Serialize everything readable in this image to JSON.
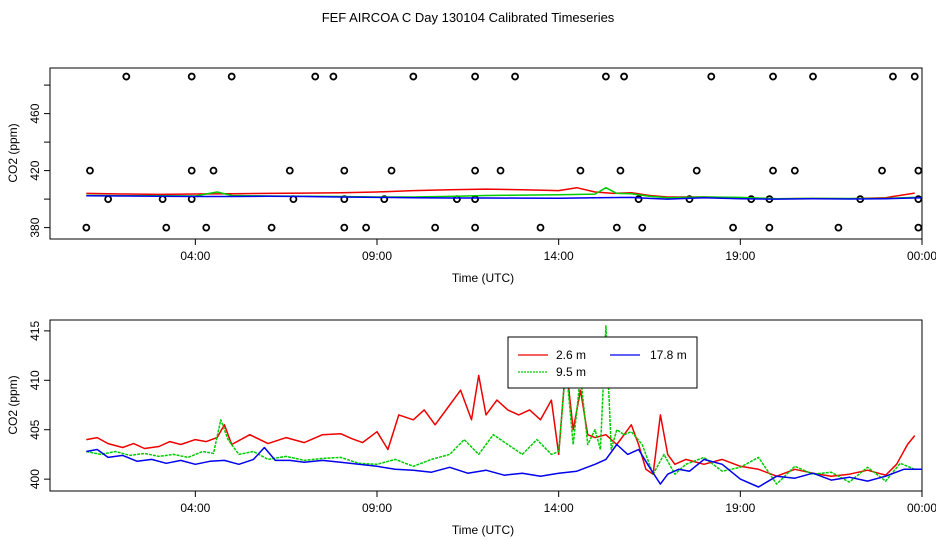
{
  "figure": {
    "title": "FEF AIRCOA C  Day 130104  Calibrated Timeseries"
  },
  "colors": {
    "series_2_6": "#ee0000",
    "series_9_5": "#00cc00",
    "series_17_8": "#0000ee",
    "axis": "#000000"
  },
  "chart_data": [
    {
      "type": "scatter",
      "title": "",
      "xlabel": "Time (UTC)",
      "ylabel": "CO2 (ppm)",
      "xlim": [
        0.0,
        24.0
      ],
      "ylim": [
        372,
        492
      ],
      "x_ticks": [
        4,
        9,
        14,
        19,
        24
      ],
      "x_tick_labels": [
        "04:00",
        "09:00",
        "14:00",
        "19:00",
        "00:00"
      ],
      "y_ticks": [
        380,
        420,
        460
      ],
      "y_tick_labels": [
        "380",
        "420",
        "460"
      ],
      "extra_y_tick_positions": [
        400,
        440,
        480
      ],
      "reference_values": [
        {
          "label": "380",
          "x": [
            1.0,
            3.2,
            4.3,
            6.1,
            8.1,
            8.7,
            10.6,
            11.7,
            13.5,
            15.6,
            16.3,
            18.8,
            19.8,
            21.7,
            23.9
          ]
        },
        {
          "label": "400",
          "x": [
            1.6,
            3.1,
            3.9,
            6.7,
            8.1,
            9.2,
            11.2,
            11.7,
            16.2,
            17.6,
            19.3,
            19.8,
            22.3,
            23.9
          ]
        },
        {
          "label": "420",
          "x": [
            1.1,
            3.9,
            4.5,
            6.6,
            8.1,
            9.4,
            11.7,
            12.4,
            14.6,
            15.7,
            17.8,
            19.9,
            20.5,
            22.9,
            23.9
          ]
        },
        {
          "label": "486",
          "x": [
            2.1,
            3.9,
            5.0,
            7.3,
            7.8,
            10.0,
            11.7,
            12.8,
            15.3,
            15.8,
            18.2,
            19.9,
            21.0,
            23.2,
            23.8
          ]
        }
      ],
      "series": [
        {
          "name": "2.6 m",
          "color": "#ee0000",
          "x": [
            1.0,
            2.0,
            3.0,
            4.0,
            5.0,
            6.0,
            7.0,
            8.0,
            9.0,
            10.0,
            11.0,
            12.0,
            13.0,
            14.0,
            14.5,
            15.0,
            15.5,
            16.0,
            16.5,
            17.0,
            18.0,
            19.0,
            20.0,
            21.0,
            22.0,
            23.0,
            23.8
          ],
          "values": [
            404.0,
            403.6,
            403.3,
            403.6,
            403.8,
            404.0,
            404.2,
            404.5,
            405.0,
            406.0,
            406.5,
            407.0,
            406.5,
            406.0,
            408.0,
            405.0,
            404.0,
            404.5,
            402.5,
            401.5,
            401.5,
            401.0,
            400.2,
            400.4,
            400.3,
            401.0,
            404.2
          ]
        },
        {
          "name": "9.5 m",
          "color": "#00cc00",
          "x": [
            1.0,
            2.0,
            3.0,
            4.0,
            4.6,
            5.0,
            6.0,
            7.0,
            8.0,
            9.0,
            10.0,
            11.0,
            12.0,
            13.0,
            14.0,
            15.0,
            15.3,
            15.6,
            16.0,
            16.5,
            17.0,
            18.0,
            19.0,
            20.0,
            21.0,
            22.0,
            23.0,
            23.8
          ],
          "values": [
            402.6,
            402.4,
            402.3,
            402.2,
            405.0,
            402.5,
            402.2,
            402.0,
            401.8,
            401.5,
            401.5,
            401.9,
            402.5,
            402.8,
            403.0,
            403.5,
            408.0,
            404.0,
            403.8,
            402.0,
            401.0,
            401.5,
            401.2,
            400.3,
            400.5,
            400.4,
            400.5,
            401.2
          ]
        },
        {
          "name": "17.8 m",
          "color": "#0000ee",
          "x": [
            1.0,
            2.0,
            3.0,
            4.0,
            5.0,
            6.0,
            7.0,
            8.0,
            9.0,
            10.0,
            11.0,
            12.0,
            13.0,
            14.0,
            15.0,
            16.0,
            16.5,
            17.0,
            18.0,
            19.0,
            20.0,
            21.0,
            22.0,
            23.0,
            24.0
          ],
          "values": [
            402.4,
            402.2,
            402.0,
            401.8,
            401.8,
            402.0,
            401.8,
            401.5,
            401.2,
            401.0,
            400.8,
            400.8,
            400.7,
            400.6,
            401.0,
            401.2,
            400.5,
            400.0,
            401.0,
            400.3,
            400.0,
            400.2,
            400.1,
            400.3,
            401.0
          ]
        }
      ]
    },
    {
      "type": "line",
      "title": "",
      "xlabel": "Time (UTC)",
      "ylabel": "CO2 (ppm)",
      "xlim": [
        0.0,
        24.0
      ],
      "ylim": [
        398.8,
        416.1
      ],
      "x_ticks": [
        4,
        9,
        14,
        19,
        24
      ],
      "x_tick_labels": [
        "04:00",
        "09:00",
        "14:00",
        "19:00",
        "00:00"
      ],
      "y_ticks": [
        400,
        405,
        410,
        415
      ],
      "y_tick_labels": [
        "400",
        "405",
        "410",
        "415"
      ],
      "legend": {
        "placement": "top-center",
        "entries": [
          "2.6 m",
          "17.8 m",
          "9.5 m"
        ]
      },
      "series": [
        {
          "name": "2.6 m",
          "color": "#ee0000",
          "x": [
            1.0,
            1.3,
            1.6,
            2.0,
            2.3,
            2.6,
            3.0,
            3.3,
            3.6,
            4.0,
            4.3,
            4.6,
            4.8,
            5.0,
            5.5,
            6.0,
            6.5,
            7.0,
            7.5,
            8.0,
            8.3,
            8.6,
            9.0,
            9.3,
            9.6,
            10.0,
            10.3,
            10.6,
            11.0,
            11.3,
            11.6,
            11.8,
            12.0,
            12.3,
            12.6,
            12.9,
            13.2,
            13.5,
            13.8,
            14.0,
            14.2,
            14.4,
            14.6,
            14.8,
            15.0,
            15.3,
            15.6,
            15.8,
            16.0,
            16.2,
            16.4,
            16.6,
            16.8,
            17.0,
            17.2,
            17.5,
            18.0,
            18.5,
            19.0,
            19.5,
            20.0,
            20.5,
            21.0,
            21.5,
            22.0,
            22.5,
            23.0,
            23.3,
            23.6,
            23.8
          ],
          "values": [
            404.0,
            404.2,
            403.6,
            403.2,
            403.6,
            403.1,
            403.3,
            403.8,
            403.5,
            404.0,
            403.8,
            404.2,
            405.5,
            403.5,
            404.5,
            403.6,
            404.2,
            403.7,
            404.5,
            404.6,
            404.1,
            403.7,
            404.8,
            403.0,
            406.5,
            406.0,
            407.0,
            405.5,
            407.5,
            409.0,
            406.0,
            410.5,
            406.5,
            408.0,
            407.0,
            406.5,
            407.0,
            406.0,
            408.0,
            402.5,
            411.8,
            405.0,
            409.0,
            404.5,
            404.2,
            404.5,
            403.5,
            404.5,
            405.5,
            403.5,
            401.0,
            400.5,
            406.5,
            402.5,
            401.5,
            402.0,
            401.5,
            402.0,
            401.3,
            401.0,
            400.3,
            401.0,
            400.6,
            400.3,
            400.5,
            400.9,
            400.4,
            401.5,
            403.5,
            404.4
          ]
        },
        {
          "name": "9.5 m",
          "color": "#00cc00",
          "x": [
            1.0,
            1.4,
            1.8,
            2.2,
            2.6,
            3.0,
            3.4,
            3.8,
            4.2,
            4.5,
            4.7,
            4.9,
            5.2,
            5.6,
            6.0,
            6.5,
            7.0,
            7.5,
            8.0,
            8.5,
            9.0,
            9.5,
            10.0,
            10.5,
            11.0,
            11.4,
            11.8,
            12.2,
            12.6,
            13.0,
            13.4,
            13.8,
            14.0,
            14.2,
            14.4,
            14.6,
            14.8,
            15.0,
            15.15,
            15.3,
            15.45,
            15.6,
            15.8,
            16.0,
            16.3,
            16.6,
            16.9,
            17.2,
            17.5,
            18.0,
            18.5,
            19.0,
            19.5,
            20.0,
            20.5,
            21.0,
            21.5,
            22.0,
            22.5,
            23.0,
            23.4,
            23.8
          ],
          "values": [
            402.8,
            402.5,
            402.8,
            402.4,
            402.6,
            402.3,
            402.5,
            402.2,
            402.8,
            402.6,
            406.0,
            404.0,
            402.5,
            402.8,
            402.0,
            402.3,
            401.9,
            402.1,
            402.2,
            401.6,
            401.5,
            402.0,
            401.3,
            402.0,
            402.5,
            404.0,
            402.5,
            404.5,
            403.5,
            402.5,
            404.0,
            402.5,
            402.8,
            411.5,
            403.5,
            410.5,
            403.5,
            405.0,
            403.0,
            415.5,
            403.0,
            405.0,
            404.5,
            404.8,
            403.5,
            400.5,
            402.5,
            400.5,
            401.5,
            402.2,
            400.8,
            401.2,
            402.2,
            399.5,
            401.3,
            400.5,
            400.7,
            399.7,
            401.2,
            399.8,
            401.6,
            401.0
          ]
        },
        {
          "name": "17.8 m",
          "color": "#0000ee",
          "x": [
            1.0,
            1.3,
            1.6,
            2.0,
            2.4,
            2.8,
            3.2,
            3.6,
            4.0,
            4.4,
            4.8,
            5.2,
            5.6,
            5.9,
            6.2,
            6.6,
            7.0,
            7.5,
            8.0,
            8.5,
            9.0,
            9.5,
            10.0,
            10.5,
            11.0,
            11.5,
            12.0,
            12.5,
            13.0,
            13.5,
            14.0,
            14.5,
            15.0,
            15.3,
            15.6,
            15.9,
            16.2,
            16.5,
            16.8,
            17.0,
            17.3,
            17.6,
            18.0,
            18.5,
            19.0,
            19.5,
            20.0,
            20.5,
            21.0,
            21.5,
            22.0,
            22.5,
            23.0,
            23.5,
            24.0
          ],
          "values": [
            402.8,
            403.0,
            402.2,
            402.4,
            401.8,
            402.0,
            401.6,
            401.9,
            401.5,
            401.8,
            401.9,
            401.5,
            402.0,
            403.2,
            401.9,
            401.9,
            401.7,
            401.9,
            401.7,
            401.5,
            401.3,
            401.0,
            400.9,
            400.7,
            401.2,
            400.6,
            400.9,
            400.4,
            400.6,
            400.3,
            400.6,
            400.8,
            401.5,
            402.0,
            403.5,
            402.5,
            403.0,
            401.2,
            399.5,
            400.5,
            401.0,
            400.8,
            402.0,
            401.5,
            400.0,
            399.2,
            400.3,
            400.1,
            400.6,
            399.9,
            400.2,
            399.8,
            400.3,
            401.0,
            401.0
          ]
        }
      ]
    }
  ]
}
